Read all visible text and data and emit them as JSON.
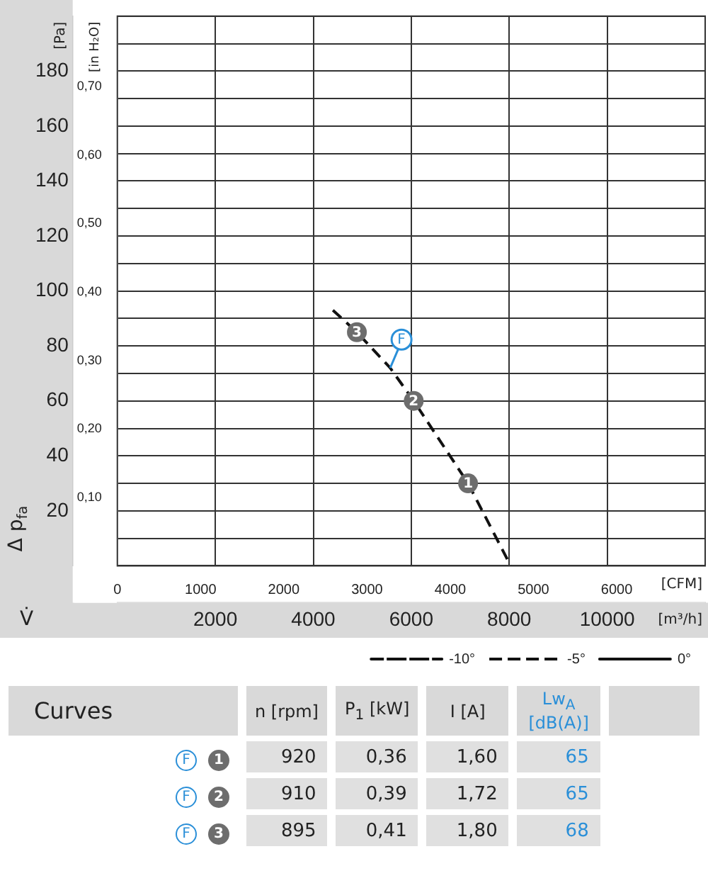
{
  "chart_data": [
    {
      "type": "line",
      "xlabel": "V̇",
      "ylabel": "Δ p$_{fa}$",
      "y2label": "[in H₂O]",
      "x2label": "[CFM]",
      "annotations": [
        "[Pa]",
        "[m³/h]",
        {
          "text": "1",
          "x": 7160,
          "y": 30
        },
        {
          "text": "2",
          "x": 6050,
          "y": 60
        },
        {
          "text": "3",
          "x": 4890,
          "y": 85
        },
        {
          "text": "F",
          "x": 5570,
          "y": 72
        }
      ],
      "xlim": [
        0,
        12000
      ],
      "xticks": [
        2000,
        4000,
        6000,
        8000,
        10000
      ],
      "x2lim": [
        0,
        7063
      ],
      "x2ticks": [
        0,
        1000,
        2000,
        3000,
        4000,
        5000,
        6000
      ],
      "ylim": [
        0,
        200
      ],
      "yticks": [
        {
          "value": 0,
          "label": null
        },
        {
          "value": 10,
          "label": null
        },
        20,
        {
          "value": 30,
          "label": null
        },
        40,
        {
          "value": 50,
          "label": null
        },
        60,
        {
          "value": 70,
          "label": null
        },
        80,
        {
          "value": 90,
          "label": null
        },
        100,
        {
          "value": 110,
          "label": null
        },
        120,
        {
          "value": 130,
          "label": null
        },
        140,
        {
          "value": 150,
          "label": null
        },
        160,
        {
          "value": 170,
          "label": null
        },
        180,
        {
          "value": 190,
          "label": null
        },
        {
          "value": 200,
          "label": null
        }
      ],
      "y2lim": [
        0,
        0.803
      ],
      "y2ticks": [
        {
          "value": 0.1,
          "label": "0,10"
        },
        {
          "value": 0.2,
          "label": "0,20"
        },
        {
          "value": 0.3,
          "label": "0,30"
        },
        {
          "value": 0.4,
          "label": "0,40"
        },
        {
          "value": 0.5,
          "label": "0,50"
        },
        {
          "value": 0.6,
          "label": "0,60"
        },
        {
          "value": 0.7,
          "label": "0,70"
        }
      ],
      "grid": true,
      "legend": "bottom right",
      "series": [
        {
          "name": "-10°",
          "color": "#111111",
          "line_style": "dashdot"
        },
        {
          "name": "-5°",
          "color": "#111111",
          "line_style": "dashed",
          "x": [
            4400,
            4890,
            5570,
            6050,
            7160,
            8030
          ],
          "values": [
            93,
            85,
            72,
            60,
            30,
            0
          ]
        },
        {
          "name": "0°",
          "color": "#111111",
          "line_style": "solid"
        }
      ]
    },
    {
      "type": "other",
      "title": "Curves",
      "categories": [
        "n [rpm]",
        "P$_{1}$ [kW]",
        "I [A]",
        "Lw$_{A}$ [dB(A)]"
      ],
      "annotations": [
        "F",
        "F",
        "F"
      ],
      "series": [
        {
          "name": "1",
          "values": [
            920,
            0.36,
            1.6,
            65
          ],
          "value_labels": [
            "920",
            "0,36",
            "1,60",
            "65"
          ]
        },
        {
          "name": "2",
          "values": [
            910,
            0.39,
            1.72,
            65
          ],
          "value_labels": [
            "910",
            "0,39",
            "1,72",
            "65"
          ]
        },
        {
          "name": "3",
          "values": [
            895,
            0.41,
            1.8,
            68
          ],
          "value_labels": [
            "895",
            "0,41",
            "1,80",
            "68"
          ]
        }
      ]
    }
  ]
}
